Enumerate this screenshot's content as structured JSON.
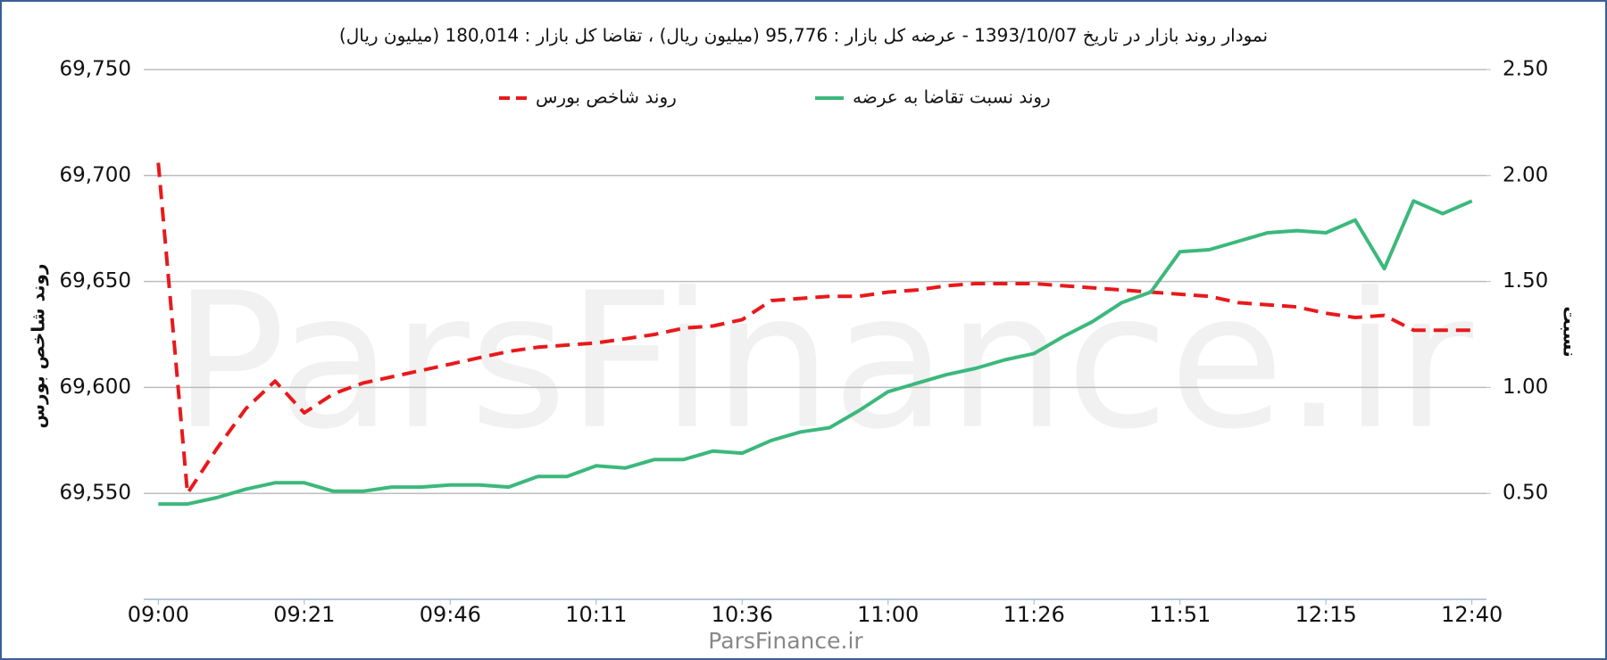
{
  "chart_data": {
    "type": "line",
    "title": "نمودار روند بازار در تاریخ 1393/10/07 - عرضه کل بازار : 95,776 (میلیون ریال) ، تقاضا کل بازار : 180,014 (میلیون ریال)",
    "y_label": "روند شاخص بورس",
    "y2_label": "نسبت",
    "watermark": "ParsFinance.ir",
    "footer": "ParsFinance.ir",
    "grid": true,
    "legend": "top",
    "categories": [
      "09:00",
      null,
      null,
      null,
      null,
      "09:21",
      null,
      null,
      null,
      null,
      "09:46",
      null,
      null,
      null,
      null,
      "10:11",
      null,
      null,
      null,
      null,
      "10:36",
      null,
      null,
      null,
      null,
      "11:00",
      null,
      null,
      null,
      null,
      "11:26",
      null,
      null,
      null,
      null,
      "11:51",
      null,
      null,
      null,
      null,
      "12:15",
      null,
      null,
      null,
      null,
      "12:40"
    ],
    "ylim": [
      69500,
      69750
    ],
    "yticks": [
      {
        "value": 69550,
        "label": "69,550"
      },
      {
        "value": 69600,
        "label": "69,600"
      },
      {
        "value": 69650,
        "label": "69,650"
      },
      {
        "value": 69700,
        "label": "69,700"
      },
      {
        "value": 69750,
        "label": "69,750"
      }
    ],
    "y2lim": [
      0,
      2.5
    ],
    "y2ticks": [
      {
        "value": 0.5,
        "label": "0.50"
      },
      {
        "value": 1,
        "label": "1.00"
      },
      {
        "value": 1.5,
        "label": "1.50"
      },
      {
        "value": 2,
        "label": "2.00"
      },
      {
        "value": 2.5,
        "label": "2.50"
      }
    ],
    "series": [
      {
        "name": "روند شاخص بورس",
        "color": "#e8191c",
        "line_style": "dashed",
        "values": [
          69706,
          69550,
          69571,
          69590,
          69603,
          69588,
          69597,
          69602,
          69605,
          69608,
          69611,
          69614,
          69617,
          69619,
          69620,
          69621,
          69623,
          69625,
          69628,
          69629,
          69632,
          69641,
          69642,
          69643,
          69643,
          69645,
          69646,
          69648,
          69649,
          69649,
          69649,
          69648,
          69647,
          69646,
          69645,
          69644,
          69643,
          69640,
          69639,
          69638,
          69635,
          69633,
          69634,
          69627,
          69627,
          69627
        ]
      },
      {
        "name": "روند نسبت تقاضا به عرضه",
        "color": "#3cb87c",
        "line_style": "solid",
        "axis": "y2",
        "values": [
          0.45,
          0.45,
          0.48,
          0.52,
          0.55,
          0.55,
          0.51,
          0.51,
          0.53,
          0.53,
          0.54,
          0.54,
          0.53,
          0.58,
          0.58,
          0.63,
          0.62,
          0.66,
          0.66,
          0.7,
          0.69,
          0.75,
          0.79,
          0.81,
          0.89,
          0.98,
          1.02,
          1.06,
          1.09,
          1.13,
          1.16,
          1.24,
          1.31,
          1.4,
          1.45,
          1.64,
          1.65,
          1.69,
          1.73,
          1.74,
          1.73,
          1.79,
          1.56,
          1.88,
          1.82,
          1.88
        ]
      }
    ]
  }
}
